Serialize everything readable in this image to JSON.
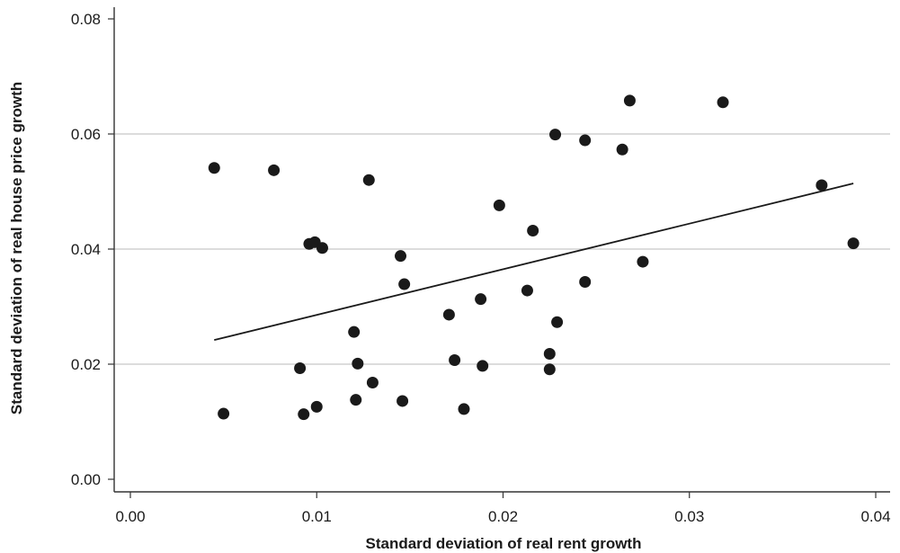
{
  "chart_data": {
    "type": "scatter",
    "title": "",
    "xlabel": "Standard deviation of real rent growth",
    "ylabel": "Standard deviation of real house price growth",
    "xlim": [
      0.0,
      0.04
    ],
    "ylim": [
      0.0,
      0.08
    ],
    "x_ticks": [
      "0.00",
      "0.01",
      "0.02",
      "0.03",
      "0.04"
    ],
    "y_ticks": [
      "0.00",
      "0.02",
      "0.04",
      "0.06",
      "0.08"
    ],
    "grid": "horizontal",
    "legend": "none",
    "colors": {
      "points": "#1a1a1a",
      "fit_line": "#1a1a1a",
      "grid": "#c8c8c8",
      "axis": "#333333"
    },
    "series": [
      {
        "points": [
          {
            "x": 0.0045,
            "y": 0.0541
          },
          {
            "x": 0.0077,
            "y": 0.0537
          },
          {
            "x": 0.005,
            "y": 0.0114
          },
          {
            "x": 0.0091,
            "y": 0.0193
          },
          {
            "x": 0.0093,
            "y": 0.0113
          },
          {
            "x": 0.0096,
            "y": 0.0409
          },
          {
            "x": 0.0099,
            "y": 0.0412
          },
          {
            "x": 0.01,
            "y": 0.0126
          },
          {
            "x": 0.0103,
            "y": 0.0402
          },
          {
            "x": 0.012,
            "y": 0.0256
          },
          {
            "x": 0.0121,
            "y": 0.0138
          },
          {
            "x": 0.0122,
            "y": 0.0201
          },
          {
            "x": 0.0128,
            "y": 0.052
          },
          {
            "x": 0.013,
            "y": 0.0168
          },
          {
            "x": 0.0145,
            "y": 0.0388
          },
          {
            "x": 0.0146,
            "y": 0.0136
          },
          {
            "x": 0.0147,
            "y": 0.0339
          },
          {
            "x": 0.0171,
            "y": 0.0286
          },
          {
            "x": 0.0174,
            "y": 0.0207
          },
          {
            "x": 0.0179,
            "y": 0.0122
          },
          {
            "x": 0.0188,
            "y": 0.0313
          },
          {
            "x": 0.0189,
            "y": 0.0197
          },
          {
            "x": 0.0198,
            "y": 0.0476
          },
          {
            "x": 0.0213,
            "y": 0.0328
          },
          {
            "x": 0.0216,
            "y": 0.0432
          },
          {
            "x": 0.0225,
            "y": 0.0218
          },
          {
            "x": 0.0225,
            "y": 0.0191
          },
          {
            "x": 0.0228,
            "y": 0.0599
          },
          {
            "x": 0.0229,
            "y": 0.0273
          },
          {
            "x": 0.0244,
            "y": 0.0589
          },
          {
            "x": 0.0244,
            "y": 0.0343
          },
          {
            "x": 0.0264,
            "y": 0.0573
          },
          {
            "x": 0.0268,
            "y": 0.0658
          },
          {
            "x": 0.0275,
            "y": 0.0378
          },
          {
            "x": 0.0318,
            "y": 0.0655
          },
          {
            "x": 0.0371,
            "y": 0.0511
          },
          {
            "x": 0.0388,
            "y": 0.041
          }
        ]
      }
    ],
    "fit_line": {
      "x": [
        0.0045,
        0.0388
      ],
      "y": [
        0.0242,
        0.0514
      ]
    }
  }
}
